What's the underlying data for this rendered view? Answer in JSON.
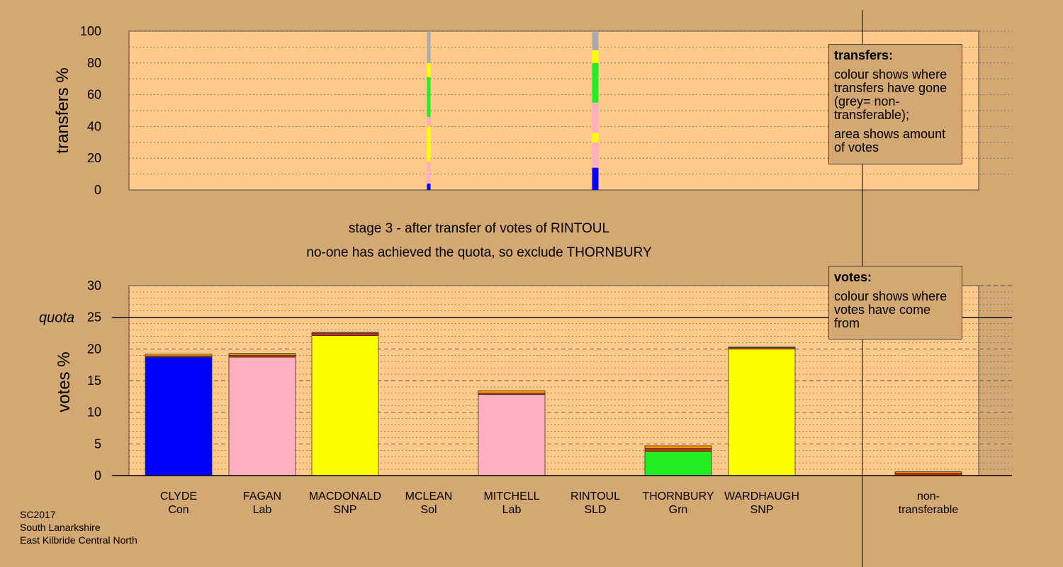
{
  "stage_title": "stage 3 - after transfer of votes of RINTOUL",
  "stage_note": "no-one has achieved the quota, so exclude THORNBURY",
  "quota_label": "quota",
  "legend_transfers": {
    "heading": "transfers:",
    "line1": "colour shows where transfers have gone (grey= non-transferable);",
    "line2": "area shows amount of votes"
  },
  "legend_votes": {
    "heading": "votes:",
    "line1": "colour shows where votes have come from"
  },
  "footer": {
    "line1": "SC2017",
    "line2": "South Lanarkshire",
    "line3": "East Kilbride Central North"
  },
  "colors": {
    "background": "#d4a872",
    "plot": "#ffc98a",
    "Con": "#0000ff",
    "Lab": "#ffb0c0",
    "SNP": "#ffff00",
    "Grn": "#22ee22",
    "transfer_red": "#cc3300",
    "transfer_orange": "#ff9900",
    "non_transferable": "#aaaaaa"
  },
  "chart_data": [
    {
      "type": "bar",
      "ylabel": "transfers %",
      "ylim": [
        0,
        100
      ],
      "yticks": [
        0,
        20,
        40,
        60,
        80,
        100
      ],
      "grid": true,
      "bars": [
        {
          "candidate": "MCLEAN",
          "segments": [
            {
              "to": "CLYDE",
              "color": "#0000ff",
              "value": 4
            },
            {
              "to": "FAGAN",
              "color": "#ffb0c0",
              "value": 14
            },
            {
              "to": "MACDONALD",
              "color": "#ffff00",
              "value": 22
            },
            {
              "to": "MITCHELL",
              "color": "#ffb0c0",
              "value": 6
            },
            {
              "to": "THORNBURY",
              "color": "#22ee22",
              "value": 25
            },
            {
              "to": "WARDHAUGH",
              "color": "#ffff00",
              "value": 9
            },
            {
              "to": "non-transferable",
              "color": "#aaaaaa",
              "value": 20
            }
          ]
        },
        {
          "candidate": "RINTOUL",
          "segments": [
            {
              "to": "CLYDE",
              "color": "#0000ff",
              "value": 14
            },
            {
              "to": "FAGAN",
              "color": "#ffb0c0",
              "value": 16
            },
            {
              "to": "MACDONALD",
              "color": "#ffff00",
              "value": 6
            },
            {
              "to": "MITCHELL",
              "color": "#ffb0c0",
              "value": 19
            },
            {
              "to": "THORNBURY",
              "color": "#22ee22",
              "value": 25
            },
            {
              "to": "WARDHAUGH",
              "color": "#ffff00",
              "value": 8
            },
            {
              "to": "non-transferable",
              "color": "#aaaaaa",
              "value": 12
            }
          ]
        }
      ]
    },
    {
      "type": "bar",
      "ylabel": "votes %",
      "ylim": [
        0,
        30
      ],
      "yticks": [
        0,
        5,
        10,
        15,
        20,
        25,
        30
      ],
      "quota": 25,
      "grid": true,
      "candidates": [
        {
          "name": "CLYDE",
          "party": "Con",
          "segments": [
            {
              "color": "#0000ff",
              "value": 18.7
            },
            {
              "color": "#cc3300",
              "value": 0.2
            },
            {
              "color": "#ff9900",
              "value": 0.3
            }
          ]
        },
        {
          "name": "FAGAN",
          "party": "Lab",
          "segments": [
            {
              "color": "#ffb0c0",
              "value": 18.7
            },
            {
              "color": "#cc3300",
              "value": 0.3
            },
            {
              "color": "#ff9900",
              "value": 0.3
            }
          ]
        },
        {
          "name": "MACDONALD",
          "party": "SNP",
          "segments": [
            {
              "color": "#ffff00",
              "value": 22.1
            },
            {
              "color": "#cc3300",
              "value": 0.4
            },
            {
              "color": "#ff9900",
              "value": 0.1
            }
          ]
        },
        {
          "name": "MCLEAN",
          "party": "Sol",
          "segments": []
        },
        {
          "name": "MITCHELL",
          "party": "Lab",
          "segments": [
            {
              "color": "#ffb0c0",
              "value": 12.8
            },
            {
              "color": "#cc3300",
              "value": 0.2
            },
            {
              "color": "#ff9900",
              "value": 0.4
            }
          ]
        },
        {
          "name": "RINTOUL",
          "party": "SLD",
          "segments": []
        },
        {
          "name": "THORNBURY",
          "party": "Grn",
          "segments": [
            {
              "color": "#22ee22",
              "value": 3.8
            },
            {
              "color": "#cc3300",
              "value": 0.5
            },
            {
              "color": "#ff9900",
              "value": 0.4
            }
          ]
        },
        {
          "name": "WARDHAUGH",
          "party": "SNP",
          "segments": [
            {
              "color": "#ffff00",
              "value": 20.0
            },
            {
              "color": "#cc3300",
              "value": 0.2
            },
            {
              "color": "#ff9900",
              "value": 0.1
            }
          ]
        }
      ],
      "non_transferable": {
        "label1": "non-",
        "label2": "transferable",
        "segments": [
          {
            "color": "#cc3300",
            "value": 0.4
          },
          {
            "color": "#ff9900",
            "value": 0.2
          }
        ]
      }
    }
  ]
}
